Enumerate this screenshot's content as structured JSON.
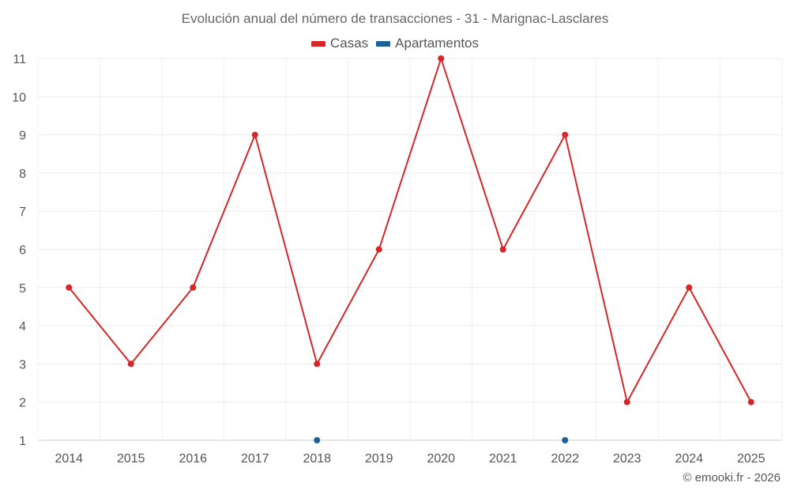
{
  "chart_data": {
    "type": "line",
    "title": "Evolución anual del número de transacciones - 31 - Marignac-Lasclares",
    "categories": [
      "2014",
      "2015",
      "2016",
      "2017",
      "2018",
      "2019",
      "2020",
      "2021",
      "2022",
      "2023",
      "2024",
      "2025"
    ],
    "series": [
      {
        "name": "Casas",
        "color": "#d62728",
        "values": [
          5,
          3,
          5,
          9,
          3,
          6,
          11,
          6,
          9,
          2,
          5,
          2
        ]
      },
      {
        "name": "Apartamentos",
        "color": "#1f5f99",
        "values": [
          null,
          null,
          null,
          null,
          1,
          null,
          null,
          null,
          1,
          null,
          null,
          null
        ]
      }
    ],
    "ylim": [
      1,
      11
    ],
    "yticks": [
      1,
      2,
      3,
      4,
      5,
      6,
      7,
      8,
      9,
      10,
      11
    ],
    "grid": true,
    "legend_position": "top-center",
    "xlabel": "",
    "ylabel": ""
  },
  "credits": "© emooki.fr - 2026"
}
